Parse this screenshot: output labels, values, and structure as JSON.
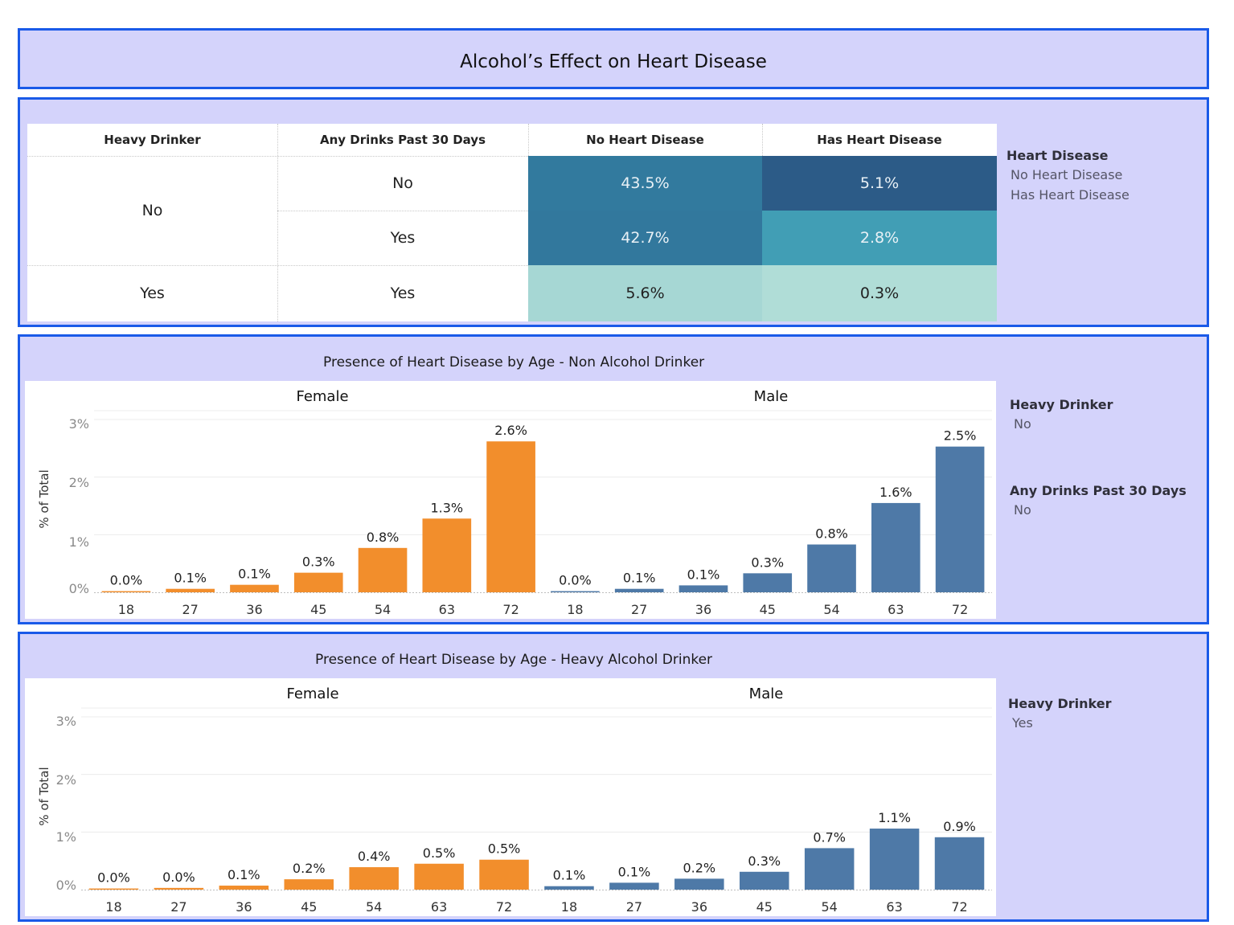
{
  "title": "Alcohol’s Effect on Heart Disease",
  "crosstab": {
    "headers": [
      "Heavy Drinker",
      "Any Drinks Past 30 Days",
      "No Heart Disease",
      "Has Heart Disease"
    ],
    "groups": [
      {
        "heavy": "No",
        "rows": [
          {
            "any": "No",
            "values": [
              "43.5%",
              "5.1%"
            ]
          },
          {
            "any": "Yes",
            "values": [
              "42.7%",
              "2.8%"
            ]
          }
        ]
      },
      {
        "heavy": "Yes",
        "rows": [
          {
            "any": "Yes",
            "values": [
              "5.6%",
              "0.3%"
            ]
          }
        ]
      }
    ],
    "cell_colors": [
      [
        "#327a9e",
        "#2c5b87"
      ],
      [
        "#32789d",
        "#419eb5"
      ],
      [
        "#a6d7d4",
        "#b0ddd7"
      ]
    ],
    "text_colors": [
      [
        "#e9f1f6",
        "#e9f1f6"
      ],
      [
        "#e9f1f6",
        "#e9f1f6"
      ],
      [
        "#222222",
        "#222222"
      ]
    ],
    "legend": {
      "title": "Heart Disease",
      "items": [
        "No Heart Disease",
        "Has Heart Disease"
      ]
    }
  },
  "chart_data": [
    {
      "type": "bar",
      "title": "Presence of Heart Disease by Age - Non Alcohol Drinker",
      "ylabel": "% of Total",
      "ylim": [
        0,
        3
      ],
      "yticks": [
        "0%",
        "1%",
        "2%",
        "3%"
      ],
      "panels": [
        {
          "name": "Female",
          "color": "#f28e2c",
          "categories": [
            "18",
            "27",
            "36",
            "45",
            "54",
            "63",
            "72"
          ],
          "values": [
            0.02,
            0.06,
            0.13,
            0.34,
            0.77,
            1.28,
            2.62
          ],
          "labels": [
            "0.0%",
            "0.1%",
            "0.1%",
            "0.3%",
            "0.8%",
            "1.3%",
            "2.6%"
          ]
        },
        {
          "name": "Male",
          "color": "#4e79a7",
          "categories": [
            "18",
            "27",
            "36",
            "45",
            "54",
            "63",
            "72"
          ],
          "values": [
            0.02,
            0.06,
            0.12,
            0.33,
            0.83,
            1.55,
            2.53
          ],
          "labels": [
            "0.0%",
            "0.1%",
            "0.1%",
            "0.3%",
            "0.8%",
            "1.6%",
            "2.5%"
          ]
        }
      ],
      "filters": [
        {
          "title": "Heavy Drinker",
          "value": "No"
        },
        {
          "title": "Any Drinks Past 30 Days",
          "value": "No"
        }
      ]
    },
    {
      "type": "bar",
      "title": "Presence of Heart Disease by Age - Heavy Alcohol Drinker",
      "ylabel": "% of Total",
      "ylim": [
        0,
        3
      ],
      "yticks": [
        "0%",
        "1%",
        "2%",
        "3%"
      ],
      "panels": [
        {
          "name": "Female",
          "color": "#f28e2c",
          "categories": [
            "18",
            "27",
            "36",
            "45",
            "54",
            "63",
            "72"
          ],
          "values": [
            0.02,
            0.03,
            0.07,
            0.18,
            0.39,
            0.45,
            0.52
          ],
          "labels": [
            "0.0%",
            "0.0%",
            "0.1%",
            "0.2%",
            "0.4%",
            "0.5%",
            "0.5%"
          ]
        },
        {
          "name": "Male",
          "color": "#4e79a7",
          "categories": [
            "18",
            "27",
            "36",
            "45",
            "54",
            "63",
            "72"
          ],
          "values": [
            0.06,
            0.12,
            0.19,
            0.31,
            0.72,
            1.06,
            0.91
          ],
          "labels": [
            "0.1%",
            "0.1%",
            "0.2%",
            "0.3%",
            "0.7%",
            "1.1%",
            "0.9%"
          ]
        }
      ],
      "filters": [
        {
          "title": "Heavy Drinker",
          "value": "Yes"
        }
      ]
    }
  ]
}
